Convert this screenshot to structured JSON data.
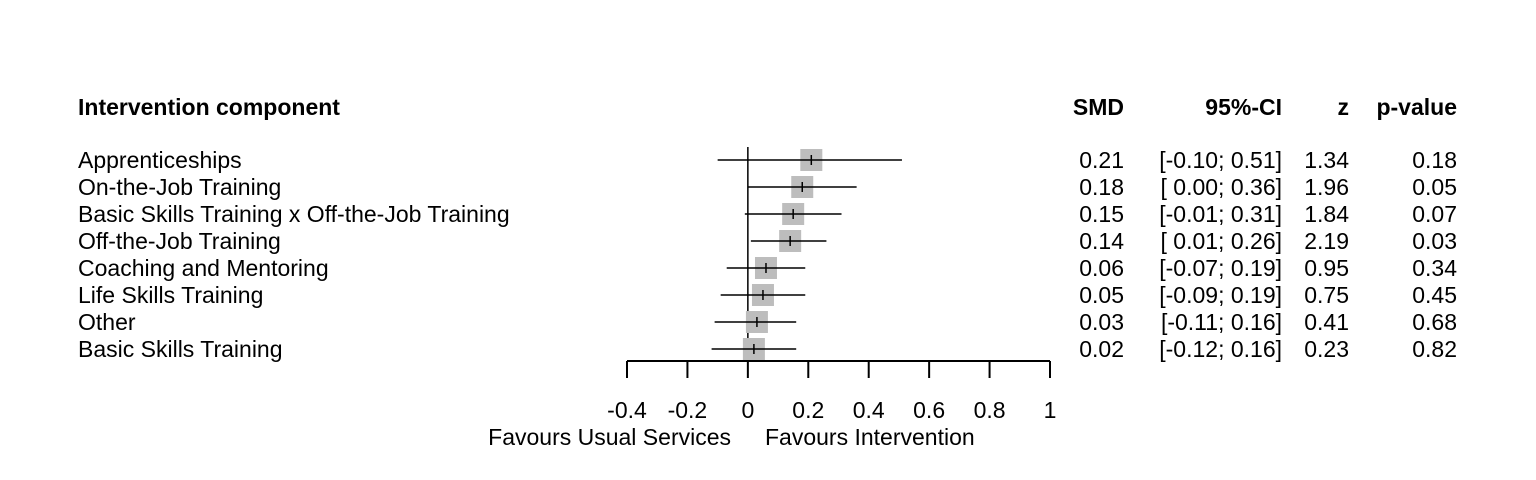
{
  "chart_data": {
    "type": "forest",
    "headers": {
      "label": "Intervention component",
      "smd": "SMD",
      "ci": "95%-CI",
      "z": "z",
      "p": "p-value"
    },
    "rows": [
      {
        "label": "Apprenticeships",
        "smd": 0.21,
        "lower": -0.1,
        "upper": 0.51,
        "smd_text": "0.21",
        "ci_text": "[-0.10; 0.51]",
        "z_text": "1.34",
        "p_text": "0.18"
      },
      {
        "label": "On-the-Job Training",
        "smd": 0.18,
        "lower": 0.0,
        "upper": 0.36,
        "smd_text": "0.18",
        "ci_text": "[ 0.00; 0.36]",
        "z_text": "1.96",
        "p_text": "0.05"
      },
      {
        "label": "Basic Skills Training x Off-the-Job Training",
        "smd": 0.15,
        "lower": -0.01,
        "upper": 0.31,
        "smd_text": "0.15",
        "ci_text": "[-0.01; 0.31]",
        "z_text": "1.84",
        "p_text": "0.07"
      },
      {
        "label": "Off-the-Job Training",
        "smd": 0.14,
        "lower": 0.01,
        "upper": 0.26,
        "smd_text": "0.14",
        "ci_text": "[ 0.01; 0.26]",
        "z_text": "2.19",
        "p_text": "0.03"
      },
      {
        "label": "Coaching and Mentoring",
        "smd": 0.06,
        "lower": -0.07,
        "upper": 0.19,
        "smd_text": "0.06",
        "ci_text": "[-0.07; 0.19]",
        "z_text": "0.95",
        "p_text": "0.34"
      },
      {
        "label": "Life Skills Training",
        "smd": 0.05,
        "lower": -0.09,
        "upper": 0.19,
        "smd_text": "0.05",
        "ci_text": "[-0.09; 0.19]",
        "z_text": "0.75",
        "p_text": "0.45"
      },
      {
        "label": "Other",
        "smd": 0.03,
        "lower": -0.11,
        "upper": 0.16,
        "smd_text": "0.03",
        "ci_text": "[-0.11; 0.16]",
        "z_text": "0.41",
        "p_text": "0.68"
      },
      {
        "label": "Basic Skills Training",
        "smd": 0.02,
        "lower": -0.12,
        "upper": 0.16,
        "smd_text": "0.02",
        "ci_text": "[-0.12; 0.16]",
        "z_text": "0.23",
        "p_text": "0.82"
      }
    ],
    "xlim": [
      -0.4,
      1
    ],
    "ticks": [
      -0.4,
      -0.2,
      0,
      0.2,
      0.4,
      0.6,
      0.8,
      1
    ],
    "tick_labels": [
      "-0.4",
      "-0.2",
      "0",
      "0.2",
      "0.4",
      "0.6",
      "0.8",
      "1"
    ],
    "reference_line": 0,
    "left_label": "Favours Usual Services",
    "right_label": "Favours Intervention",
    "square_color": "#bdbdbd",
    "line_color": "#000000"
  }
}
